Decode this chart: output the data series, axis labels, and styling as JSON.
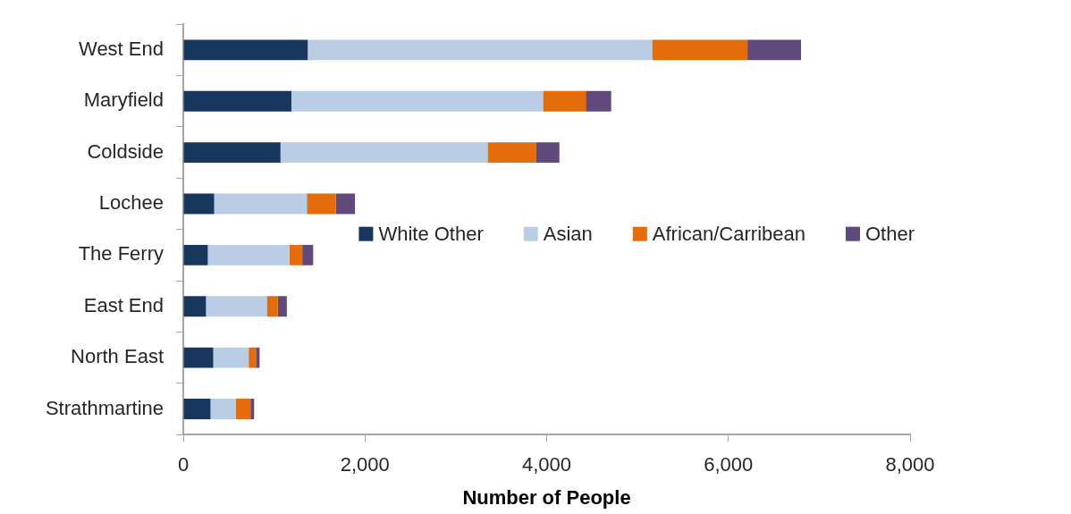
{
  "chart_data": {
    "type": "bar",
    "orientation": "horizontal",
    "stacked": true,
    "xlabel": "Number of People",
    "categories": [
      "West End",
      "Maryfield",
      "Coldside",
      "Lochee",
      "The Ferry",
      "East End",
      "North East",
      "Strathmartine"
    ],
    "series": [
      {
        "name": "White Other",
        "color": "#17375e",
        "values": [
          1370,
          1190,
          1070,
          340,
          270,
          250,
          330,
          300
        ]
      },
      {
        "name": "Asian",
        "color": "#b9cde5",
        "values": [
          3790,
          2770,
          2280,
          1020,
          900,
          670,
          390,
          280
        ]
      },
      {
        "name": "African/Carribean",
        "color": "#e46c0a",
        "values": [
          1050,
          470,
          530,
          320,
          140,
          120,
          80,
          160
        ]
      },
      {
        "name": "Other",
        "color": "#604a7b",
        "values": [
          590,
          280,
          260,
          210,
          120,
          100,
          40,
          40
        ]
      }
    ],
    "xlim": [
      0,
      8000
    ],
    "xticks": [
      {
        "value": 0,
        "label": "0"
      },
      {
        "value": 2000,
        "label": "2,000"
      },
      {
        "value": 4000,
        "label": "4,000"
      },
      {
        "value": 6000,
        "label": "6,000"
      },
      {
        "value": 8000,
        "label": "8,000"
      }
    ],
    "grid": false,
    "legend": "right"
  }
}
